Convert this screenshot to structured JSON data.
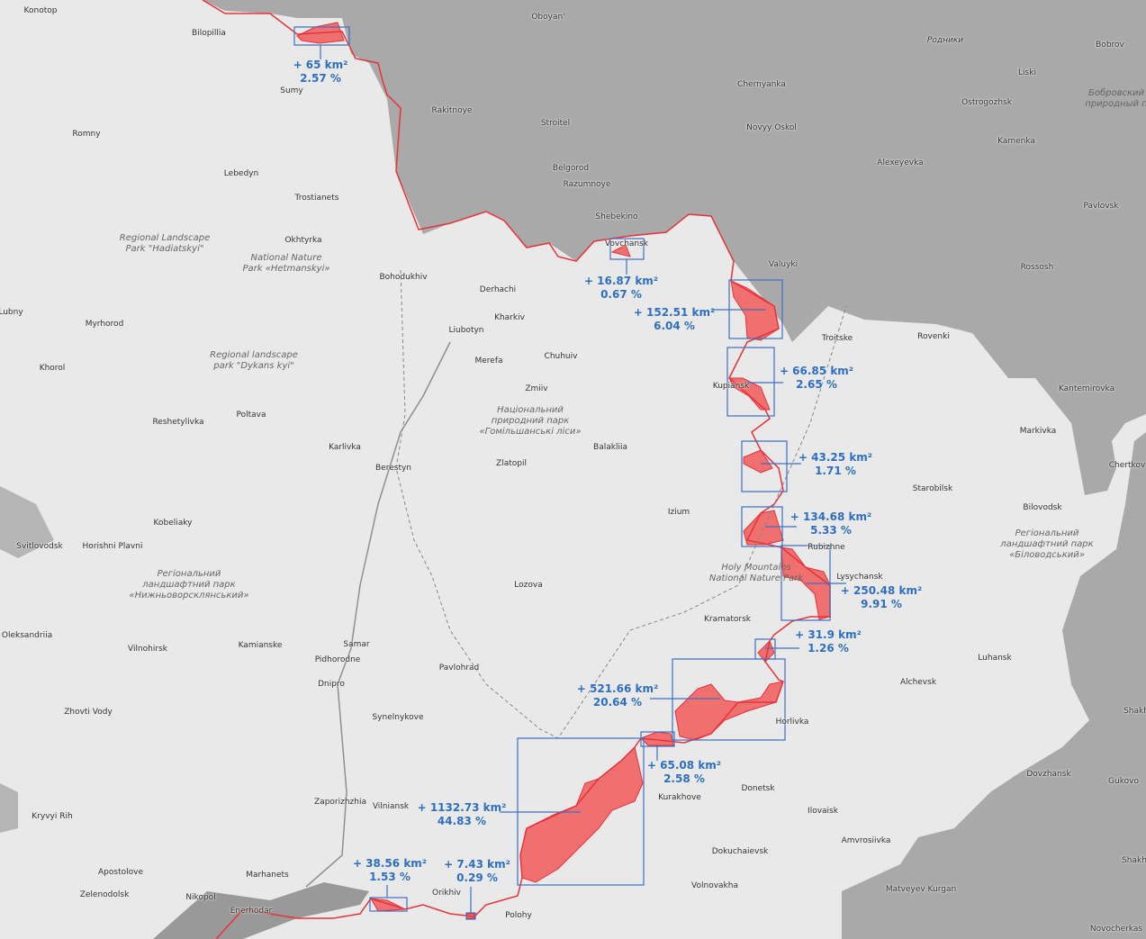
{
  "colors": {
    "occupied": "#f07070",
    "frontline": "#e8323a",
    "box": "#3f6fc2",
    "label": "#2d6ec4",
    "russia": "#a9a9a9",
    "ukraine": "#e9e9e9"
  },
  "cities": [
    "Konotop",
    "Bilopillia",
    "Sumy",
    "Romny",
    "Lebedyn",
    "Trostianets",
    "Okhtyrka",
    "Bohodukhiv",
    "Derhachi",
    "Kharkiv",
    "Liubotyn",
    "Merefa",
    "Chuhuiv",
    "Zmiiv",
    "Balakliia",
    "Zlatopil",
    "Izium",
    "Lozova",
    "Kramatorsk",
    "Lysychansk",
    "Rubizhne",
    "Troitske",
    "Kupiansk",
    "Starobilsk",
    "Bilovodsk",
    "Markivka",
    "Luhansk",
    "Alchevsk",
    "Horlivka",
    "Donetsk",
    "Kurakhove",
    "Ilovaisk",
    "Amvrosiivka",
    "Dokuchaievsk",
    "Volnovakha",
    "Polohy",
    "Orikhiv",
    "Enerhodar",
    "Nikopol",
    "Marhanets",
    "Apostolove",
    "Zelenodolsk",
    "Kryvyi Rih",
    "Zaporizhzhia",
    "Vilniansk",
    "Synelnykove",
    "Dnipro",
    "Pidhorodne",
    "Samar",
    "Kamianske",
    "Pavlohrad",
    "Vilnohirsk",
    "Zhovti Vody",
    "Oleksandriia",
    "Svitlovodsk",
    "Horishni Plavni",
    "Kobeliaky",
    "Karlivka",
    "Berestyn",
    "Poltava",
    "Reshetylivka",
    "Khorol",
    "Myrhorod",
    "Lubny",
    "Vovchansk",
    "Shebekino",
    "Belgorod",
    "Razumnoye",
    "Stroitel",
    "Rakitnoye",
    "Oboyan'",
    "Chernyanka",
    "Novyy Oskol",
    "Valuyki",
    "Alexeyevka",
    "Ostrogozhsk",
    "Liski",
    "Bobrov",
    "Kamenka",
    "Pavlovsk",
    "Rossosh",
    "Rovenki",
    "Kantemirovka",
    "Chertkov",
    "Dovzhansk",
    "Gukovo",
    "Matveyev Kurgan",
    "Novocherkas",
    "Shakh",
    "Shakh",
    "Родники"
  ],
  "parks": [
    "Regional Landscape\nPark \"Hadiatskyi\"",
    "National Nature\nPark «Hetmanskyi»",
    "Regional landscape\npark \"Dykans kyi\"",
    "Національний\nприродний парк\n«Гомільшанські ліси»",
    "Регіональний\nландшафтний парк\n«Нижньоворсклянський»",
    "Holy Mountains\nNational Nature Park",
    "Регіональний\nландшафтний парк\n«Біловодський»",
    "Бобровский\nприродный п"
  ],
  "annotations": [
    {
      "area": "+ 65 km²",
      "percent": "2.57 %"
    },
    {
      "area": "+ 16.87 km²",
      "percent": "0.67 %"
    },
    {
      "area": "+ 152.51 km²",
      "percent": "6.04 %"
    },
    {
      "area": "+ 66.85 km²",
      "percent": "2.65 %"
    },
    {
      "area": "+ 43.25 km²",
      "percent": "1.71 %"
    },
    {
      "area": "+ 134.68 km²",
      "percent": "5.33 %"
    },
    {
      "area": "+ 250.48 km²",
      "percent": "9.91 %"
    },
    {
      "area": "+ 31.9 km²",
      "percent": "1.26 %"
    },
    {
      "area": "+ 521.66 km²",
      "percent": "20.64 %"
    },
    {
      "area": "+ 65.08 km²",
      "percent": "2.58 %"
    },
    {
      "area": "+ 1132.73 km²",
      "percent": "44.83 %"
    },
    {
      "area": "+ 38.56 km²",
      "percent": "1.53 %"
    },
    {
      "area": "+ 7.43 km²",
      "percent": "0.29 %"
    }
  ]
}
